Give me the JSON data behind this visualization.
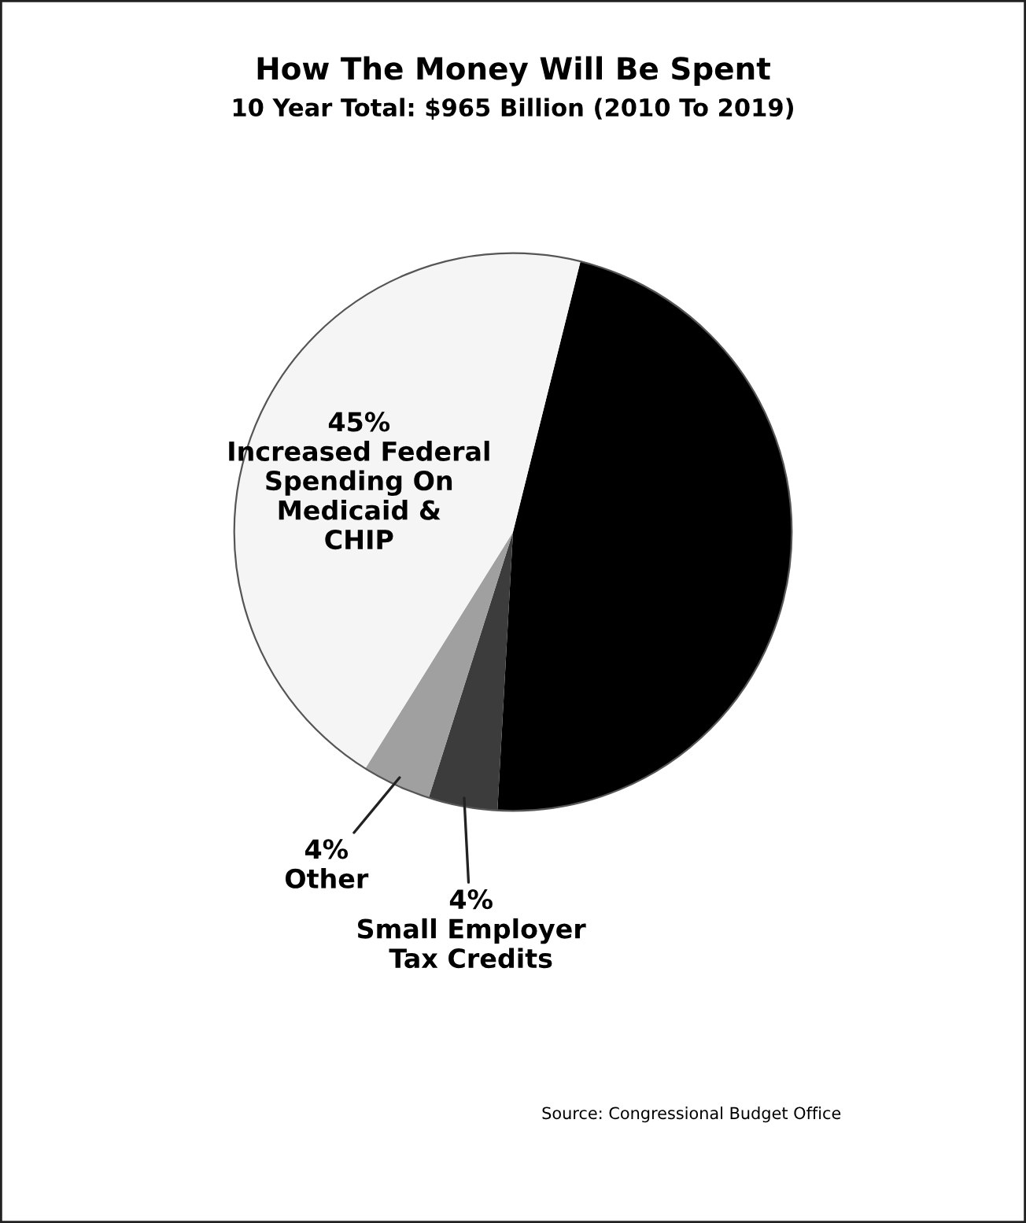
{
  "chart_data": {
    "type": "pie",
    "title": "How The Money Will Be Spent",
    "subtitle": "10 Year Total: $965 Billion (2010 To 2019)",
    "categories": [
      null,
      "Small Employer\nTax Credits",
      "Other",
      "Increased Federal\nSpending On\nMedicaid &\nCHIP"
    ],
    "values": [
      47,
      4,
      4,
      45
    ],
    "value_labels": [
      null,
      "4%",
      "4%",
      "45%"
    ],
    "colors": [
      "#000000",
      "#3c3c3c",
      "#a0a0a0",
      "#f5f5f5"
    ],
    "annotations": [
      "Source: Congressional Budget Office"
    ]
  }
}
